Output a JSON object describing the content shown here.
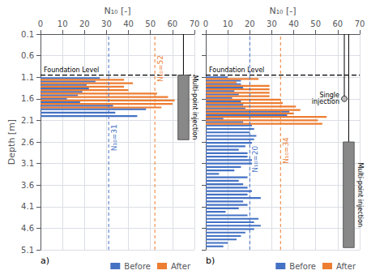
{
  "chart_data": [
    {
      "type": "bar",
      "orientation": "horizontal",
      "xlabel": "N₁₀ [-]",
      "ylabel": "Depth [m]",
      "panel_label": "a)",
      "xlim": [
        0,
        70
      ],
      "xticks": [
        0,
        10,
        20,
        30,
        40,
        50,
        60,
        70
      ],
      "ylim": [
        5.1,
        0.1
      ],
      "yticks": [
        0.1,
        0.6,
        1.1,
        1.6,
        2.1,
        2.6,
        3.1,
        3.6,
        4.1,
        4.6,
        5.1
      ],
      "grid": true,
      "legend": "lower right",
      "series": [
        {
          "name": "Before",
          "color": "#4472C4",
          "y": [
            1.12,
            1.2,
            1.28,
            1.36,
            1.44,
            1.52,
            1.6,
            1.68,
            1.76,
            1.84,
            1.92,
            2.0
          ],
          "values": [
            27,
            25,
            21,
            22,
            19,
            17,
            12,
            18,
            33,
            48,
            34,
            44
          ]
        },
        {
          "name": "After",
          "color": "#ED7D31",
          "y": [
            1.16,
            1.24,
            1.32,
            1.4,
            1.48,
            1.56,
            1.64,
            1.72,
            1.8
          ],
          "values": [
            38,
            42,
            38,
            40,
            53,
            58,
            61,
            60,
            55
          ]
        }
      ],
      "hlines": [
        {
          "value": 1.05,
          "label": "Foundation Level"
        }
      ],
      "vlines": [
        {
          "value": 31,
          "label": "N₁₀=31",
          "label_y": 2.5,
          "series": "Before"
        },
        {
          "value": 52,
          "label": "N₁₀=52",
          "label_y": 0.9,
          "series": "After"
        }
      ],
      "multi_point_injection": {
        "label": "Multi-point injection",
        "x": 65,
        "width": 5,
        "top": 1.05,
        "bottom": 2.55
      }
    },
    {
      "type": "bar",
      "orientation": "horizontal",
      "xlabel": "N₁₀ [-]",
      "panel_label": "b)",
      "tick_labels": "x",
      "xlim": [
        0,
        70
      ],
      "xticks": [
        0,
        10,
        20,
        30,
        40,
        50,
        60,
        70
      ],
      "ylim": [
        5.1,
        0.1
      ],
      "yticks": [
        0.1,
        0.6,
        1.1,
        1.6,
        2.1,
        2.6,
        3.1,
        3.6,
        4.1,
        4.6,
        5.1
      ],
      "grid": true,
      "legend": "lower right",
      "series": [
        {
          "name": "Before",
          "color": "#4472C4",
          "y": [
            1.1,
            1.18,
            1.26,
            1.34,
            1.42,
            1.5,
            1.58,
            1.66,
            1.74,
            1.82,
            1.9,
            1.98,
            2.06,
            2.14,
            2.22,
            2.3,
            2.38,
            2.46,
            2.54,
            2.62,
            2.7,
            2.78,
            2.86,
            2.94,
            3.02,
            3.1,
            3.18,
            3.26,
            3.34,
            3.42,
            3.5,
            3.58,
            3.66,
            3.74,
            3.82,
            3.9,
            3.98,
            4.06,
            4.14,
            4.22,
            4.3,
            4.38,
            4.46,
            4.54,
            4.62,
            4.7,
            4.78,
            4.86,
            4.94,
            5.02
          ],
          "values": [
            10,
            16,
            16,
            17,
            13,
            15,
            12,
            16,
            17,
            18,
            38,
            37,
            8,
            17,
            21,
            22,
            20,
            23,
            22,
            21,
            18,
            15,
            19,
            19,
            21,
            21,
            16,
            13,
            6,
            19,
            15,
            17,
            19,
            21,
            19,
            25,
            17,
            19,
            15,
            9,
            19,
            24,
            22,
            25,
            22,
            18,
            16,
            14,
            10,
            8
          ]
        },
        {
          "name": "After",
          "color": "#ED7D31",
          "y": [
            1.14,
            1.22,
            1.3,
            1.38,
            1.46,
            1.54,
            1.62,
            1.7,
            1.78,
            1.86,
            1.94,
            2.02,
            2.1,
            2.18
          ],
          "values": [
            24,
            14,
            29,
            29,
            29,
            29,
            34,
            35,
            41,
            43,
            40,
            55,
            51,
            53
          ]
        }
      ],
      "hlines": [
        {
          "value": 1.05,
          "label": "Foundation Level"
        }
      ],
      "vlines": [
        {
          "value": 20,
          "label": "N₁₀=20",
          "label_y": 3.0,
          "series": "Before"
        },
        {
          "value": 34,
          "label": "N₁₀=34",
          "label_y": 2.8,
          "series": "After"
        }
      ],
      "multi_point_injection": {
        "label": "Multi-point injection",
        "x": 65,
        "width": 5,
        "top": 2.6,
        "bottom": 5.05
      },
      "single_injection": {
        "label": "Single\ninjection",
        "x": 63,
        "y": 1.6
      }
    }
  ]
}
